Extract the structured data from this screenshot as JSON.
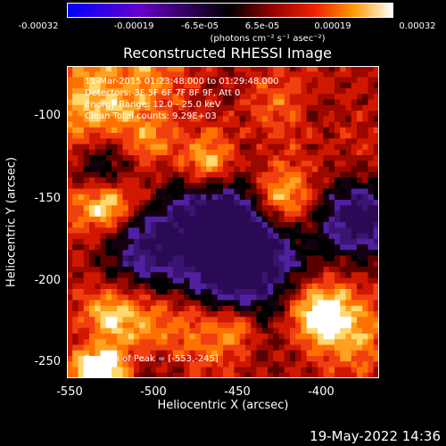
{
  "colorbar": {
    "ticks": [
      "-0.00032",
      "-0.00019",
      "-6.5e-05",
      "6.5e-05",
      "0.00019",
      "0.00032"
    ],
    "units": "(photons cm⁻² s⁻¹ asec⁻²)"
  },
  "title": "Reconstructed RHESSI Image",
  "info": {
    "line1": "11-Mar-2015 01:23:48.000 to 01:29:48.000",
    "line2": "Detectors: 3F 5F 6F 7F 8F 9F, Att 0",
    "line3": "Energy Range: 12.0 - 25.0 keV",
    "line4": "Clean      Total counts: 9.29E+03",
    "peak": "Position of Peak = [-553,-245]"
  },
  "axes": {
    "xlabel": "Heliocentric X (arcsec)",
    "ylabel": "Heliocentric Y (arcsec)",
    "xticks": [
      "-550",
      "-500",
      "-450",
      "-400"
    ],
    "yticks": [
      "-100",
      "-150",
      "-200",
      "-250"
    ],
    "xrange": [
      -553,
      -367
    ],
    "yrange": [
      -261,
      -75
    ]
  },
  "footer": "19-May-2022 14:36"
}
